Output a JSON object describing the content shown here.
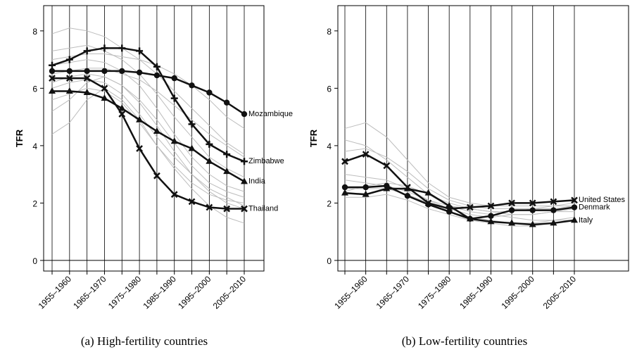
{
  "chart_data": [
    {
      "type": "line",
      "caption": "(a) High-fertility countries",
      "ylabel": "TFR",
      "categories": [
        null,
        "1955–1960",
        null,
        "1965–1970",
        null,
        "1975–1980",
        null,
        "1985–1990",
        null,
        "1995–2000",
        null,
        "2005–2010"
      ],
      "ylim": [
        -0.37,
        8.88
      ],
      "yticks": [
        0,
        2,
        4,
        6,
        8
      ],
      "hline": 0,
      "vgrid": true,
      "background_color": "#bdbdbd",
      "background_series": [
        [
          7.3,
          7.4,
          7.5,
          7.3,
          7.0,
          6.5,
          5.8,
          5.0,
          4.3,
          3.6,
          3.2,
          2.9
        ],
        [
          6.2,
          6.4,
          6.5,
          6.4,
          6.1,
          5.6,
          4.9,
          4.1,
          3.3,
          2.7,
          2.4,
          2.2
        ],
        [
          5.6,
          5.8,
          6.0,
          5.9,
          5.5,
          4.8,
          4.0,
          3.3,
          2.7,
          2.3,
          2.1,
          2.0
        ],
        [
          7.0,
          7.1,
          7.2,
          7.2,
          7.1,
          7.0,
          6.8,
          6.5,
          6.1,
          5.6,
          5.0,
          4.6
        ],
        [
          6.8,
          6.9,
          7.0,
          6.9,
          6.6,
          6.1,
          5.3,
          4.4,
          3.6,
          3.0,
          2.6,
          2.4
        ],
        [
          5.2,
          5.6,
          6.2,
          6.4,
          6.1,
          5.5,
          4.7,
          3.8,
          3.0,
          2.4,
          2.0,
          1.8
        ],
        [
          6.5,
          6.6,
          6.7,
          6.7,
          6.5,
          6.3,
          5.9,
          5.4,
          4.9,
          4.4,
          4.0,
          3.6
        ],
        [
          4.4,
          4.8,
          5.6,
          6.0,
          5.6,
          4.9,
          4.0,
          3.2,
          2.5,
          1.9,
          1.5,
          1.3
        ],
        [
          7.9,
          8.1,
          8.0,
          7.8,
          7.4,
          7.0,
          6.5,
          5.9,
          5.3,
          4.7,
          4.1,
          3.7
        ],
        [
          6.0,
          6.2,
          6.3,
          6.2,
          5.8,
          5.1,
          4.3,
          3.6,
          3.0,
          2.5,
          2.2,
          1.9
        ]
      ],
      "series": [
        {
          "name": "Mozambique",
          "color": "#111111",
          "marker": "circle",
          "values": [
            6.6,
            6.6,
            6.6,
            6.6,
            6.6,
            6.55,
            6.45,
            6.35,
            6.1,
            5.85,
            5.5,
            5.1
          ]
        },
        {
          "name": "Zimbabwe",
          "color": "#111111",
          "marker": "plus",
          "values": [
            6.8,
            7.0,
            7.3,
            7.4,
            7.4,
            7.3,
            6.75,
            5.65,
            4.75,
            4.05,
            3.7,
            3.45
          ]
        },
        {
          "name": "India",
          "color": "#111111",
          "marker": "triangle",
          "values": [
            5.9,
            5.9,
            5.85,
            5.65,
            5.3,
            4.9,
            4.5,
            4.15,
            3.9,
            3.45,
            3.1,
            2.75
          ]
        },
        {
          "name": "Thailand",
          "color": "#111111",
          "marker": "cross",
          "values": [
            6.35,
            6.35,
            6.35,
            6.0,
            5.1,
            3.9,
            2.95,
            2.3,
            2.05,
            1.85,
            1.8,
            1.8
          ]
        }
      ]
    },
    {
      "type": "line",
      "caption": "(b) Low-fertility countries",
      "ylabel": "TFR",
      "categories": [
        null,
        "1955–1960",
        null,
        "1965–1970",
        null,
        "1975–1980",
        null,
        "1985–1990",
        null,
        "1995–2000",
        null,
        "2005–2010"
      ],
      "ylim": [
        -0.37,
        8.88
      ],
      "yticks": [
        0,
        2,
        4,
        6,
        8
      ],
      "hline": 0,
      "vgrid": true,
      "background_color": "#bdbdbd",
      "background_series": [
        [
          4.6,
          4.8,
          4.3,
          3.5,
          2.7,
          2.2,
          2.0,
          1.9,
          1.9,
          1.9,
          1.9,
          2.0
        ],
        [
          3.0,
          2.9,
          2.8,
          2.5,
          2.1,
          1.8,
          1.6,
          1.5,
          1.6,
          1.6,
          1.7,
          1.8
        ],
        [
          2.5,
          2.5,
          2.5,
          2.3,
          2.0,
          1.7,
          1.5,
          1.4,
          1.3,
          1.3,
          1.4,
          1.5
        ],
        [
          3.8,
          3.9,
          3.6,
          3.1,
          2.5,
          2.1,
          1.9,
          1.8,
          1.8,
          1.8,
          1.8,
          1.9
        ],
        [
          2.2,
          2.2,
          2.3,
          2.1,
          1.8,
          1.6,
          1.4,
          1.3,
          1.2,
          1.2,
          1.3,
          1.4
        ],
        [
          2.8,
          2.7,
          2.6,
          2.4,
          2.1,
          1.9,
          1.8,
          1.7,
          1.7,
          1.8,
          1.9,
          1.9
        ],
        [
          4.2,
          4.0,
          3.5,
          2.9,
          2.3,
          1.9,
          1.7,
          1.6,
          1.5,
          1.4,
          1.4,
          1.4
        ],
        [
          2.4,
          2.6,
          2.7,
          2.6,
          2.3,
          2.0,
          1.8,
          1.7,
          1.6,
          1.6,
          1.7,
          1.7
        ]
      ],
      "series": [
        {
          "name": "United States",
          "color": "#111111",
          "marker": "cross",
          "values": [
            3.45,
            3.7,
            3.3,
            2.55,
            2.0,
            1.8,
            1.85,
            1.9,
            2.0,
            2.0,
            2.05,
            2.1
          ]
        },
        {
          "name": "Denmark",
          "color": "#111111",
          "marker": "circle",
          "values": [
            2.55,
            2.55,
            2.6,
            2.25,
            1.95,
            1.7,
            1.45,
            1.55,
            1.75,
            1.75,
            1.75,
            1.85
          ]
        },
        {
          "name": "Italy",
          "color": "#111111",
          "marker": "triangle",
          "values": [
            2.35,
            2.3,
            2.5,
            2.5,
            2.35,
            1.9,
            1.45,
            1.35,
            1.3,
            1.25,
            1.3,
            1.4
          ]
        }
      ]
    }
  ]
}
